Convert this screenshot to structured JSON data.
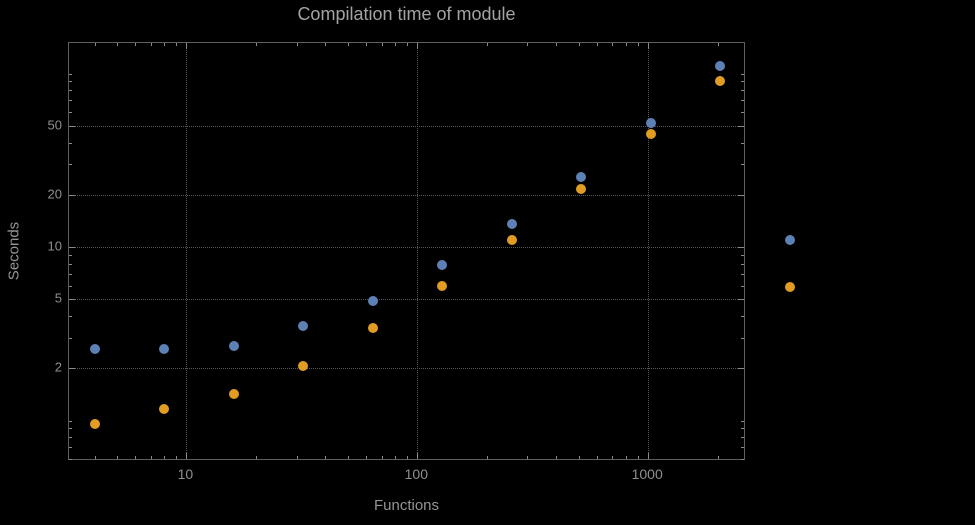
{
  "chart_data": {
    "type": "scatter",
    "title": "Compilation time of module",
    "xlabel": "Functions",
    "ylabel": "Seconds",
    "x_scale": "log",
    "y_scale": "log",
    "grid": "dotted",
    "x_range": [
      3.1,
      2600
    ],
    "y_range": [
      0.6,
      150
    ],
    "x_ticks": [
      10,
      100,
      1000
    ],
    "y_ticks": [
      2,
      5,
      10,
      20,
      50
    ],
    "x": [
      4,
      8,
      16,
      32,
      64,
      128,
      256,
      512,
      1024,
      2048
    ],
    "series": [
      {
        "color": "#5e81b5",
        "values": [
          2.6,
          2.6,
          2.7,
          3.5,
          4.9,
          7.9,
          13.5,
          25.5,
          52,
          110
        ]
      },
      {
        "color": "#e19c24",
        "values": [
          0.96,
          1.16,
          1.43,
          2.05,
          3.4,
          6.0,
          11,
          21.5,
          45,
          90
        ]
      }
    ],
    "legend": {
      "position": "right",
      "labels_visible": false
    }
  },
  "colors": {
    "background": "#000000",
    "grid": "#585858",
    "frame": "#5f5f5f",
    "labels": "#949494",
    "series_1": "#5e81b5",
    "series_2": "#e19c24"
  }
}
